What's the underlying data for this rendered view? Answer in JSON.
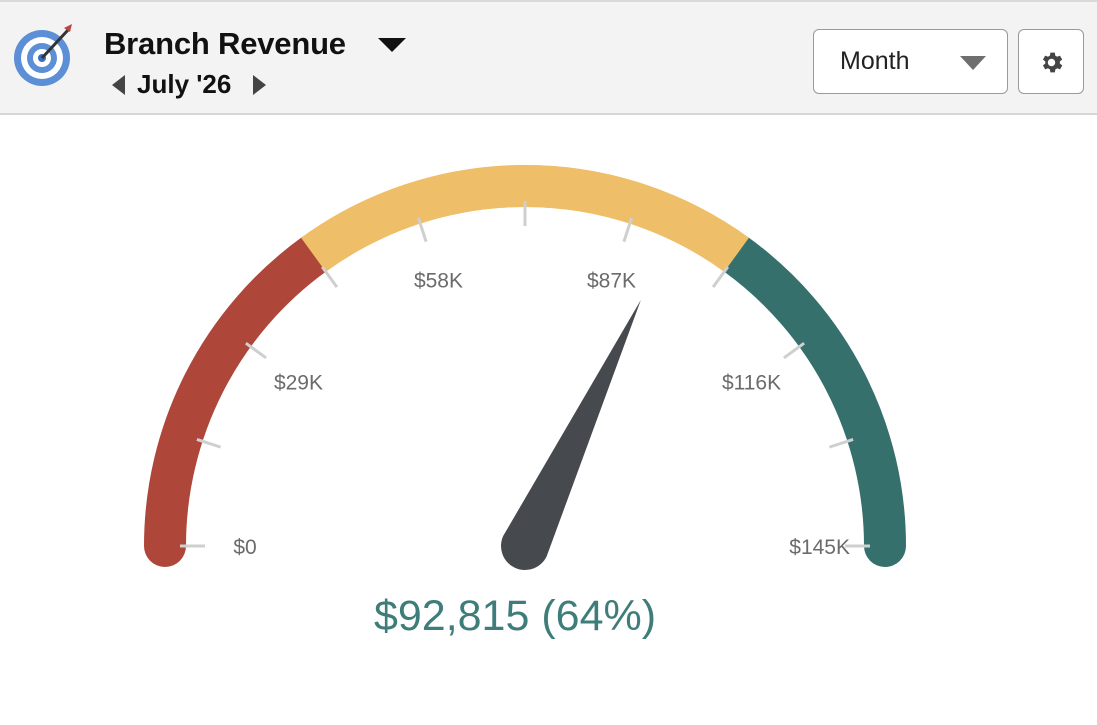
{
  "header": {
    "title": "Branch Revenue",
    "period": "July '26",
    "granularity": "Month",
    "icons": {
      "app": "target-icon",
      "title_menu": "caret-down-icon",
      "prev": "chevron-left-icon",
      "next": "chevron-right-icon",
      "granularity_dropdown": "caret-down-icon",
      "settings": "gear-icon"
    }
  },
  "chart_data": {
    "type": "gauge",
    "min": 0,
    "max": 145000,
    "value": 92815,
    "percent": 64,
    "value_label": "$92,815 (64%)",
    "tick_labels": [
      {
        "value": 0,
        "label": "$0"
      },
      {
        "value": 29000,
        "label": "$29K"
      },
      {
        "value": 58000,
        "label": "$58K"
      },
      {
        "value": 87000,
        "label": "$87K"
      },
      {
        "value": 116000,
        "label": "$116K"
      },
      {
        "value": 145000,
        "label": "$145K"
      }
    ],
    "minor_tick_values": [
      14500,
      43500,
      72500,
      101500,
      130500
    ],
    "bands": [
      {
        "from": 0,
        "to": 43500,
        "color": "#ae4639"
      },
      {
        "from": 43500,
        "to": 101500,
        "color": "#efbe69"
      },
      {
        "from": 101500,
        "to": 145000,
        "color": "#35706c"
      }
    ],
    "needle_color": "#464a4f",
    "value_color": "#3f7d7a"
  }
}
